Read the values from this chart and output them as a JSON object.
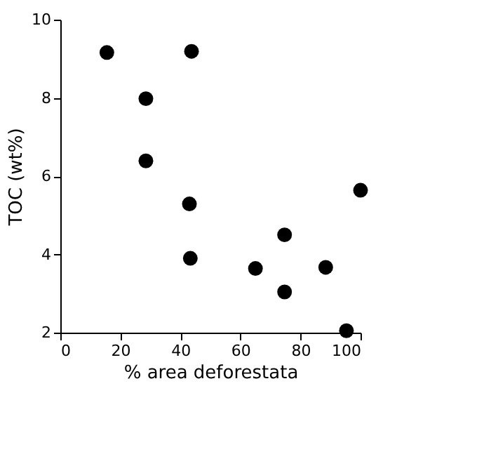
{
  "chart_data": {
    "type": "scatter",
    "xlabel": "% area deforestata",
    "ylabel": "TOC (wt%)",
    "x": [
      15.5,
      43.7,
      28.5,
      28.5,
      43,
      43.3,
      65,
      74.7,
      74.7,
      88.4,
      95.3,
      100
    ],
    "values": [
      9.16,
      9.19,
      7.98,
      6.39,
      5.29,
      3.9,
      3.64,
      4.5,
      3.04,
      3.67,
      2.05,
      5.64
    ],
    "color": "#000000",
    "marker": "circle",
    "xlim": [
      0,
      100
    ],
    "xticks": [
      0,
      20,
      40,
      60,
      80,
      100
    ],
    "ylim": [
      2,
      10
    ],
    "yticks": [
      2,
      4,
      6,
      8,
      10
    ],
    "grid": false
  }
}
